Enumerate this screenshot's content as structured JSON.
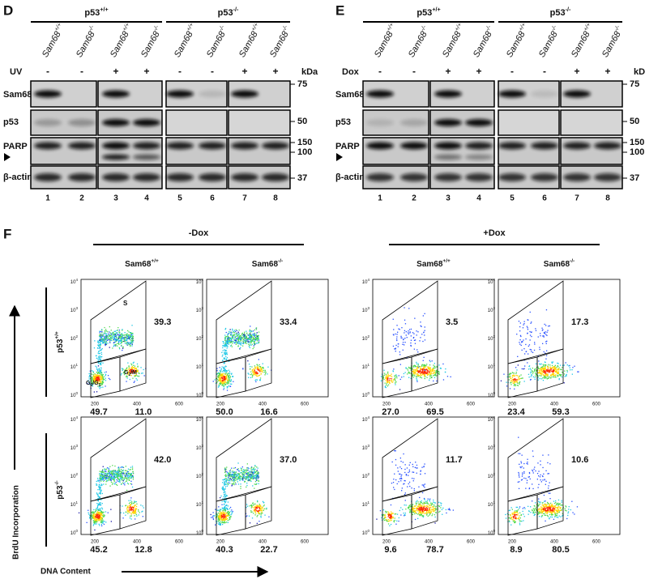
{
  "panel_d": {
    "letter": "D",
    "groups": [
      {
        "text": "p53",
        "sup": "+/+"
      },
      {
        "text": "p53",
        "sup": "-/-"
      }
    ],
    "samples": [
      {
        "text": "Sam68",
        "sup": "+/+"
      },
      {
        "text": "Sam68",
        "sup": "-/-"
      },
      {
        "text": "Sam68",
        "sup": "+/+"
      },
      {
        "text": "Sam68",
        "sup": "-/-"
      },
      {
        "text": "Sam68",
        "sup": "+/+"
      },
      {
        "text": "Sam68",
        "sup": "-/-"
      },
      {
        "text": "Sam68",
        "sup": "+/+"
      },
      {
        "text": "Sam68",
        "sup": "-/-"
      }
    ],
    "treatment": "UV",
    "signs": [
      "-",
      "-",
      "+",
      "+",
      "-",
      "-",
      "+",
      "+"
    ],
    "kda": "kDa",
    "rows": [
      "Sam68",
      "p53",
      "PARP",
      "β-actin"
    ],
    "markers": [
      "75",
      "50",
      "150",
      "100",
      "37"
    ],
    "lanes": [
      "1",
      "2",
      "3",
      "4",
      "5",
      "6",
      "7",
      "8"
    ]
  },
  "panel_e": {
    "letter": "E",
    "groups": [
      {
        "text": "p53",
        "sup": "+/+"
      },
      {
        "text": "p53",
        "sup": "-/-"
      }
    ],
    "samples": [
      {
        "text": "Sam68",
        "sup": "+/+"
      },
      {
        "text": "Sam68",
        "sup": "-/-"
      },
      {
        "text": "Sam68",
        "sup": "+/+"
      },
      {
        "text": "Sam68",
        "sup": "-/-"
      },
      {
        "text": "Sam68",
        "sup": "+/+"
      },
      {
        "text": "Sam68",
        "sup": "-/-"
      },
      {
        "text": "Sam68",
        "sup": "+/+"
      },
      {
        "text": "Sam68",
        "sup": "-/-"
      }
    ],
    "treatment": "Dox",
    "signs": [
      "-",
      "-",
      "+",
      "+",
      "-",
      "-",
      "+",
      "+"
    ],
    "kda": "kDa",
    "rows": [
      "Sam68",
      "p53",
      "PARP",
      "β-actin"
    ],
    "markers": [
      "75",
      "50",
      "150",
      "100",
      "37"
    ],
    "lanes": [
      "1",
      "2",
      "3",
      "4",
      "5",
      "6",
      "7",
      "8"
    ]
  },
  "panel_f": {
    "letter": "F",
    "conditions": [
      "-Dox",
      "+Dox"
    ],
    "columns": [
      {
        "text": "Sam68",
        "sup": "+/+"
      },
      {
        "text": "Sam68",
        "sup": "-/-"
      },
      {
        "text": "Sam68",
        "sup": "+/+"
      },
      {
        "text": "Sam68",
        "sup": "-/-"
      }
    ],
    "rows": [
      {
        "text": "p53",
        "sup": "+/+"
      },
      {
        "text": "p53",
        "sup": "-/-"
      }
    ],
    "y_axis_label": "BrdU Incorporation",
    "x_axis_label": "DNA Content",
    "yticks": [
      {
        "text": "10",
        "sup": "4"
      },
      {
        "text": "10",
        "sup": "3"
      },
      {
        "text": "10",
        "sup": "2"
      },
      {
        "text": "10",
        "sup": "1"
      },
      {
        "text": "10",
        "sup": "0"
      }
    ],
    "xticks": [
      "200",
      "400",
      "600"
    ],
    "gate_labels": {
      "s": "S",
      "g0g1": [
        "G",
        "0",
        "/G",
        "1"
      ],
      "g2m": [
        "G",
        "2",
        "/M"
      ]
    },
    "plots": [
      [
        {
          "s": "39.3",
          "g0g1": "49.7",
          "g2m": "11.0"
        },
        {
          "s": "33.4",
          "g0g1": "50.0",
          "g2m": "16.6"
        },
        {
          "s": "3.5",
          "g0g1": "27.0",
          "g2m": "69.5"
        },
        {
          "s": "17.3",
          "g0g1": "23.4",
          "g2m": "59.3"
        }
      ],
      [
        {
          "s": "42.0",
          "g0g1": "45.2",
          "g2m": "12.8"
        },
        {
          "s": "37.0",
          "g0g1": "40.3",
          "g2m": "22.7"
        },
        {
          "s": "11.7",
          "g0g1": "9.6",
          "g2m": "78.7"
        },
        {
          "s": "10.6",
          "g0g1": "8.9",
          "g2m": "80.5"
        }
      ]
    ]
  }
}
